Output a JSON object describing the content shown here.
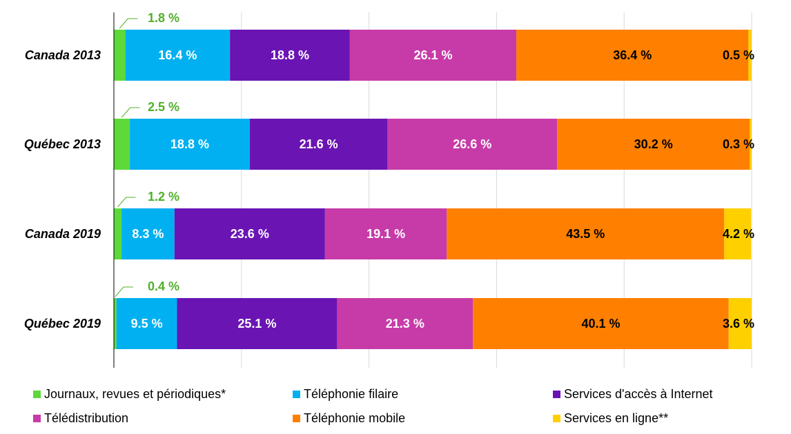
{
  "chart_data": {
    "type": "bar",
    "orientation": "horizontal",
    "stacked": true,
    "categories": [
      "Canada 2013",
      "Québec 2013",
      "Canada 2019",
      "Québec 2019"
    ],
    "series": [
      {
        "name": "Journaux, revues et périodiques*",
        "color": "#5ed93a",
        "values": [
          1.8,
          2.5,
          1.2,
          0.4
        ],
        "labels": [
          "1.8 %",
          "2.5 %",
          "1.2 %",
          "0.4 %"
        ]
      },
      {
        "name": "Téléphonie filaire",
        "color": "#00b0f0",
        "values": [
          16.4,
          18.8,
          8.3,
          9.5
        ],
        "labels": [
          "16.4 %",
          "18.8 %",
          "8.3 %",
          "9.5 %"
        ]
      },
      {
        "name": "Services d'accès à Internet",
        "color": "#6a14b4",
        "values": [
          18.8,
          21.6,
          23.6,
          25.1
        ],
        "labels": [
          "18.8 %",
          "21.6 %",
          "23.6 %",
          "25.1 %"
        ]
      },
      {
        "name": "Télédistribution",
        "color": "#c73ba8",
        "values": [
          26.1,
          26.6,
          19.1,
          21.3
        ],
        "labels": [
          "26.1 %",
          "26.6 %",
          "19.1 %",
          "21.3 %"
        ]
      },
      {
        "name": "Téléphonie mobile",
        "color": "#ff8000",
        "values": [
          36.4,
          30.2,
          43.5,
          40.1
        ],
        "labels": [
          "36.4 %",
          "30.2 %",
          "43.5 %",
          "40.1 %"
        ]
      },
      {
        "name": "Services en ligne**",
        "color": "#ffd000",
        "values": [
          0.5,
          0.3,
          4.2,
          3.6
        ],
        "labels": [
          "0.5 %",
          "0.3 %",
          "4.2 %",
          "3.6 %"
        ]
      }
    ],
    "xlim": [
      0,
      100
    ],
    "grid": true,
    "legend_position": "bottom"
  }
}
